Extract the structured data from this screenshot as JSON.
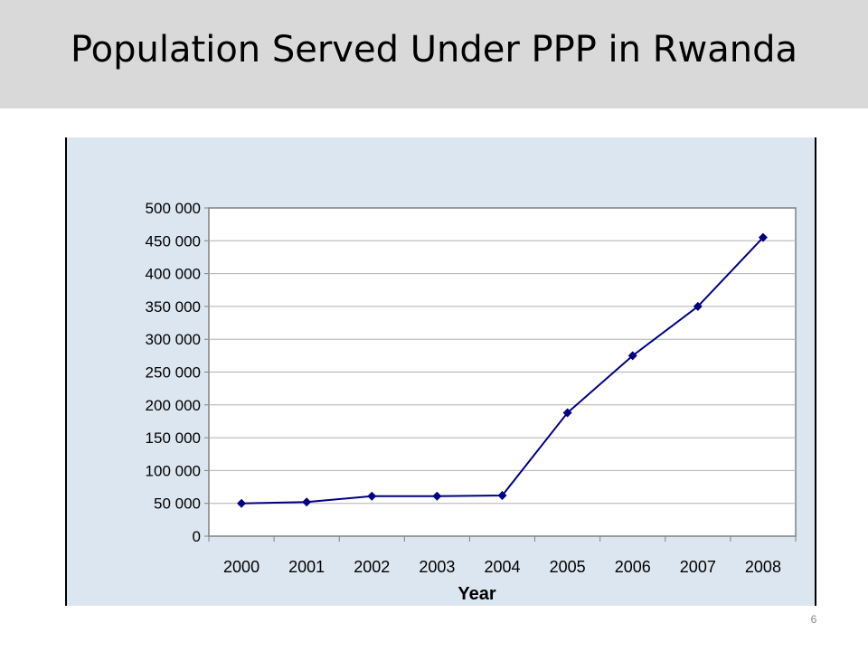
{
  "slide": {
    "title": "Population Served Under PPP in Rwanda",
    "page_number": "6"
  },
  "colors": {
    "title_bar": "#d9d9d9",
    "chart_background": "#dce6f1",
    "plot_background": "#ffffff",
    "series": "#000080",
    "gridline": "#b0b0b0"
  },
  "chart_data": {
    "type": "line",
    "title": "",
    "xlabel": "Year",
    "ylabel": "",
    "x": [
      "2000",
      "2001",
      "2002",
      "2003",
      "2004",
      "2005",
      "2006",
      "2007",
      "2008"
    ],
    "series": [
      {
        "values": [
          50000,
          52000,
          61000,
          61000,
          62000,
          188000,
          275000,
          350000,
          455000
        ],
        "marker": "diamond"
      }
    ],
    "ylim": [
      0,
      500000
    ],
    "yticks": [
      0,
      50000,
      100000,
      150000,
      200000,
      250000,
      300000,
      350000,
      400000,
      450000,
      500000
    ],
    "ytick_labels": [
      "0",
      "50 000",
      "100 000",
      "150 000",
      "200 000",
      "250 000",
      "300 000",
      "350 000",
      "400 000",
      "450 000",
      "500 000"
    ],
    "grid": true,
    "legend": "none"
  }
}
